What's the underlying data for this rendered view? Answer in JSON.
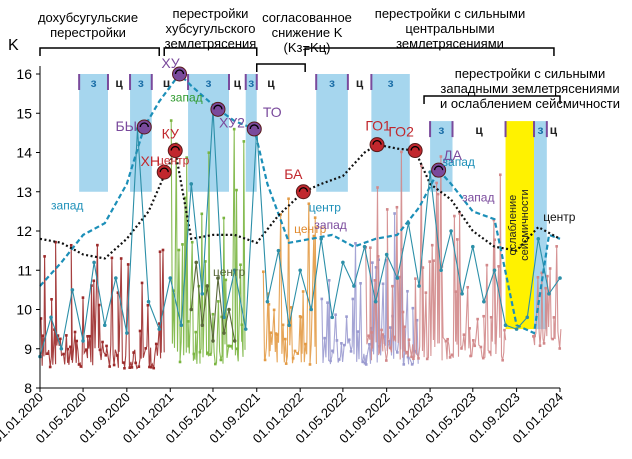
{
  "chart_data": {
    "type": "line",
    "ylabel": "K",
    "ylim": [
      8,
      16
    ],
    "yticks": [
      "8",
      "9",
      "10",
      "11",
      "12",
      "13",
      "14",
      "15",
      "16"
    ],
    "xlim": [
      "2020-01-01",
      "2024-01-01"
    ],
    "xticks": [
      "01.01.2020",
      "01.05.2020",
      "01.09.2020",
      "01.01.2021",
      "01.05.2021",
      "01.09.2021",
      "01.01.2022",
      "01.05.2022",
      "01.09.2022",
      "01.01.2023",
      "01.05.2023",
      "01.09.2023",
      "01.01.2024"
    ],
    "periods": [
      {
        "label": "дохубсугульские перестройки",
        "lines": [
          "дохубсугульские",
          "перестройки"
        ],
        "x0": "2020-01-01",
        "x1": "2020-12-01"
      },
      {
        "label": "перестройки хубсугульского землетрясения",
        "lines": [
          "перестройки",
          "хубсугульского",
          "землетрясения"
        ],
        "x0": "2020-12-15",
        "x1": "2021-09-01"
      },
      {
        "label": "согласованное снижение K (Kз=Kц)",
        "lines": [
          "согласованное",
          "снижение K",
          "(Kз=Kц)"
        ],
        "x0": "2021-09-01",
        "x1": "2022-01-15"
      },
      {
        "label": "перестройки с сильными центральными землетрясениями",
        "lines": [
          "перестройки с сильными",
          "центральными",
          "землетрясениями"
        ],
        "x0": "2022-01-15",
        "x1": "2023-12-15"
      },
      {
        "label": "перестройки с сильными западными землетрясениями и ослаблением сейсмичности",
        "lines": [
          "перестройки с сильными",
          "западными землетрясениями",
          "и ослаблением сейсмичности"
        ],
        "x0": "2022-12-15",
        "x1": "2024-01-01"
      }
    ],
    "zones": [
      {
        "label": "з",
        "type": "west",
        "x0": "2020-04-20",
        "x1": "2020-07-10",
        "y0": 13,
        "y1": 16
      },
      {
        "label": "ц",
        "type": "center",
        "x0": "2020-07-10",
        "x1": "2020-09-10",
        "y0": 13,
        "y1": 16
      },
      {
        "label": "з",
        "type": "west",
        "x0": "2020-09-10",
        "x1": "2020-11-10",
        "y0": 13,
        "y1": 16
      },
      {
        "label": "ц",
        "type": "center",
        "x0": "2020-11-10",
        "x1": "2021-02-01",
        "y0": 13,
        "y1": 16
      },
      {
        "label": "з",
        "type": "west",
        "x0": "2021-02-20",
        "x1": "2021-06-15",
        "y0": 13,
        "y1": 16
      },
      {
        "label": "ц",
        "type": "center",
        "x0": "2021-06-15",
        "x1": "2021-08-01",
        "y0": 13,
        "y1": 16
      },
      {
        "label": "з",
        "type": "west",
        "x0": "2021-08-01",
        "x1": "2021-09-01",
        "y0": 13,
        "y1": 16
      },
      {
        "label": "ц",
        "type": "center",
        "x0": "2021-09-01",
        "x1": "2021-11-20",
        "y0": 13,
        "y1": 16
      },
      {
        "label": "з",
        "type": "west",
        "x0": "2022-02-15",
        "x1": "2022-05-15",
        "y0": 13,
        "y1": 16
      },
      {
        "label": "ц",
        "type": "center",
        "x0": "2022-05-15",
        "x1": "2022-07-20",
        "y0": 13,
        "y1": 16
      },
      {
        "label": "з",
        "type": "west",
        "x0": "2022-07-20",
        "x1": "2022-11-05",
        "y0": 13,
        "y1": 16
      },
      {
        "label": "з",
        "type": "west",
        "x0": "2023-01-01",
        "x1": "2023-03-05",
        "y0": 13,
        "y1": 14.8
      },
      {
        "label": "ц",
        "type": "center",
        "x0": "2023-03-05",
        "x1": "2023-08-01",
        "y0": 13,
        "y1": 14.8
      },
      {
        "label": "ослабление сейсмичности",
        "type": "weakening",
        "x0": "2023-08-01",
        "x1": "2023-10-20",
        "y0": 9.5,
        "y1": 14.8
      },
      {
        "label": "з",
        "type": "west",
        "x0": "2023-10-20",
        "x1": "2023-11-25",
        "y0": 9.5,
        "y1": 14.8
      },
      {
        "label": "ц",
        "type": "center",
        "x0": "2023-11-25",
        "x1": "2024-01-01",
        "y0": 13,
        "y1": 14.8
      }
    ],
    "events": [
      {
        "label": "БЫ",
        "x": "2020-10-20",
        "y": 14.65,
        "color": "#7a4a9c"
      },
      {
        "label": "ХН",
        "x": "2020-12-15",
        "y": 13.5,
        "color": "#c1272d"
      },
      {
        "label": "КУ",
        "x": "2021-01-15",
        "y": 14.05,
        "color": "#c1272d"
      },
      {
        "label": "ХУ",
        "x": "2021-01-27",
        "y": 16.0,
        "color": "#7a4a9c"
      },
      {
        "label": "ХУ2",
        "x": "2021-05-15",
        "y": 15.1,
        "color": "#7a4a9c"
      },
      {
        "label": "ТО",
        "x": "2021-08-25",
        "y": 14.6,
        "color": "#7a4a9c"
      },
      {
        "label": "БА",
        "x": "2022-01-10",
        "y": 13.0,
        "color": "#c1272d"
      },
      {
        "label": "ГО1",
        "x": "2022-08-05",
        "y": 14.2,
        "color": "#c1272d"
      },
      {
        "label": "ГО2",
        "x": "2022-11-20",
        "y": 14.05,
        "color": "#c1272d"
      },
      {
        "label": "ДА",
        "x": "2023-01-25",
        "y": 13.55,
        "color": "#7a4a9c"
      }
    ],
    "series": [
      {
        "name": "запад",
        "type": "envelope",
        "color": "#1c8fb8",
        "x": [
          "2020-01-01",
          "2020-03-01",
          "2020-05-01",
          "2020-07-01",
          "2020-09-01",
          "2020-10-20",
          "2020-12-01",
          "2021-01-27",
          "2021-03-01",
          "2021-05-15",
          "2021-07-01",
          "2021-08-25",
          "2021-10-01",
          "2021-12-01",
          "2022-02-01",
          "2022-04-01",
          "2022-06-01",
          "2022-08-01",
          "2022-10-01",
          "2022-12-01",
          "2023-01-25",
          "2023-03-01",
          "2023-05-01",
          "2023-07-01",
          "2023-09-01",
          "2023-10-20",
          "2023-12-01",
          "2024-01-01"
        ],
        "y": [
          10.6,
          11.2,
          11.9,
          12.2,
          13.2,
          14.65,
          15.3,
          16.0,
          15.7,
          15.1,
          14.8,
          14.6,
          13.2,
          11.7,
          11.8,
          11.9,
          11.6,
          11.8,
          11.9,
          12.6,
          13.55,
          13.2,
          12.5,
          12.3,
          9.6,
          9.4,
          11.9,
          11.8
        ]
      },
      {
        "name": "центр",
        "type": "envelope",
        "color": "#111111",
        "x": [
          "2020-01-01",
          "2020-03-01",
          "2020-05-01",
          "2020-07-01",
          "2020-09-01",
          "2020-11-01",
          "2021-01-15",
          "2021-03-01",
          "2021-05-01",
          "2021-07-01",
          "2021-09-01",
          "2021-11-01",
          "2022-01-10",
          "2022-03-01",
          "2022-05-01",
          "2022-07-01",
          "2022-08-05",
          "2022-10-01",
          "2022-11-20",
          "2023-01-01",
          "2023-03-01",
          "2023-05-01",
          "2023-07-01",
          "2023-09-01",
          "2023-11-01",
          "2024-01-01"
        ],
        "y": [
          11.8,
          11.7,
          11.4,
          11.3,
          11.8,
          12.5,
          14.05,
          11.8,
          11.9,
          11.9,
          11.7,
          12.4,
          13.0,
          13.2,
          13.4,
          14.0,
          14.2,
          14.1,
          14.05,
          13.2,
          12.8,
          12.0,
          11.6,
          11.5,
          12.1,
          11.8
        ]
      },
      {
        "name": "запад",
        "type": "events",
        "color": "#2c8fa8",
        "x": [
          "2020-01-01",
          "2020-02-01",
          "2020-03-01",
          "2020-04-01",
          "2020-05-01",
          "2020-06-01",
          "2020-07-01",
          "2020-08-01",
          "2020-09-01",
          "2020-10-01",
          "2020-11-01",
          "2020-12-01",
          "2021-01-01",
          "2021-02-01",
          "2021-03-01",
          "2021-04-01",
          "2021-05-01",
          "2021-06-01",
          "2021-07-01",
          "2021-08-01",
          "2021-09-01",
          "2021-10-01",
          "2021-11-01",
          "2021-12-01",
          "2022-01-01",
          "2022-02-01",
          "2022-03-01",
          "2022-04-01",
          "2022-05-01",
          "2022-06-01",
          "2022-07-01",
          "2022-08-01",
          "2022-09-01",
          "2022-10-01",
          "2022-11-01",
          "2022-12-01",
          "2023-01-01",
          "2023-02-01",
          "2023-03-01",
          "2023-04-01",
          "2023-05-01",
          "2023-06-01",
          "2023-07-01",
          "2023-08-01",
          "2023-09-01",
          "2023-10-01",
          "2023-11-01",
          "2023-12-01",
          "2024-01-01"
        ],
        "y": [
          8.8,
          9.8,
          9.0,
          10.5,
          9.2,
          11.2,
          9.6,
          10.8,
          9.4,
          14.6,
          10.2,
          9.5,
          10.8,
          9.6,
          13.2,
          10.4,
          15.1,
          9.8,
          11.0,
          9.5,
          14.6,
          10.2,
          11.5,
          9.6,
          11.0,
          10.0,
          11.8,
          9.8,
          11.2,
          10.6,
          11.6,
          10.2,
          11.4,
          10.8,
          12.2,
          10.6,
          13.5,
          11.0,
          12.0,
          10.4,
          11.6,
          10.2,
          11.0,
          9.6,
          9.5,
          9.8,
          11.8,
          10.4,
          10.8
        ]
      },
      {
        "name": "центр",
        "type": "events",
        "color": "#5a6a3a",
        "x": [
          "2021-03-01",
          "2021-03-15",
          "2021-04-01",
          "2021-04-15",
          "2021-05-01",
          "2021-05-15",
          "2021-06-01",
          "2021-06-15",
          "2021-07-01"
        ],
        "y": [
          10.0,
          11.2,
          9.6,
          10.6,
          9.2,
          10.8,
          9.4,
          10.0,
          9.2
        ]
      }
    ],
    "series_labels": [
      {
        "text": "запад",
        "x": "2021-01-01",
        "y": 15.3,
        "color": "#2e9a2e"
      },
      {
        "text": "центр",
        "x": "2020-11-25",
        "y": 13.7,
        "color": "#c1272d"
      },
      {
        "text": "запад",
        "x": "2020-02-01",
        "y": 12.55,
        "color": "#1c8fb8"
      },
      {
        "text": "центр",
        "x": "2021-05-01",
        "y": 10.85,
        "color": "#5a6a3a"
      },
      {
        "text": "центр",
        "x": "2021-12-15",
        "y": 11.95,
        "color": "#e08a2e"
      },
      {
        "text": "центр",
        "x": "2022-01-25",
        "y": 12.5,
        "color": "#1c8fb8"
      },
      {
        "text": "запад",
        "x": "2022-02-10",
        "y": 12.05,
        "color": "#7a4a9c"
      },
      {
        "text": "запад",
        "x": "2023-02-05",
        "y": 13.65,
        "color": "#1c8fb8"
      },
      {
        "text": "запад",
        "x": "2023-04-01",
        "y": 12.75,
        "color": "#7a4a9c"
      },
      {
        "text": "центр",
        "x": "2023-11-15",
        "y": 12.25,
        "color": "#111111"
      }
    ],
    "ensembles": [
      {
        "color": "#9c2a2a",
        "x0": "2020-01-01",
        "x1": "2020-12-15",
        "ymin": 8.5,
        "ymax": 12.1
      },
      {
        "color": "#7ab540",
        "x0": "2021-01-01",
        "x1": "2021-08-01",
        "ymin": 8.6,
        "ymax": 15.2
      },
      {
        "color": "#e39b46",
        "x0": "2021-09-15",
        "x1": "2022-02-15",
        "ymin": 8.6,
        "ymax": 13.0
      },
      {
        "color": "#9b9bd0",
        "x0": "2022-03-01",
        "x1": "2022-12-01",
        "ymin": 8.6,
        "ymax": 12.6
      },
      {
        "color": "#d2888a",
        "x0": "2022-07-01",
        "x1": "2023-08-01",
        "ymin": 8.7,
        "ymax": 14.1
      },
      {
        "color": "#d2888a",
        "x0": "2023-10-15",
        "x1": "2024-01-01",
        "ymin": 9.0,
        "ymax": 11.9
      }
    ],
    "colors": {
      "west_zone": "#a6d6ee",
      "weakening_zone": "#fff200",
      "marker_stroke": "#7a4a9c",
      "event_red": "#c1272d",
      "event_purple": "#7a4a9c"
    }
  }
}
